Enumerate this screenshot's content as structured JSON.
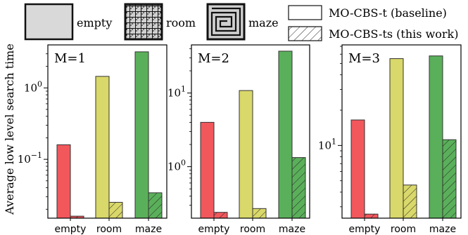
{
  "legend": {
    "map_items": [
      {
        "key": "empty",
        "label": "empty",
        "icon": "empty-map-thumbnail"
      },
      {
        "key": "room",
        "label": "room",
        "icon": "room-map-thumbnail"
      },
      {
        "key": "maze",
        "label": "maze",
        "icon": "maze-map-thumbnail"
      }
    ],
    "method_items": [
      {
        "key": "baseline",
        "label": "MO-CBS-t (baseline)",
        "hatch": false
      },
      {
        "key": "this_work",
        "label": "MO-CBS-ts (this work)",
        "hatch": true
      }
    ]
  },
  "colors": {
    "empty": "#f2575c",
    "room": "#d9d86a",
    "maze": "#5ab05a",
    "edge": "#333333"
  },
  "chart_data": [
    {
      "type": "bar",
      "annotation": "M=1",
      "ylabel": "Average low level search time",
      "yscale": "log",
      "ylim": [
        0.015,
        4.0
      ],
      "major_ticks": [
        {
          "value": 0.1,
          "base": "10",
          "exp": "−1"
        },
        {
          "value": 1,
          "base": "10",
          "exp": "0"
        }
      ],
      "categories": [
        "empty",
        "room",
        "maze"
      ],
      "series": [
        {
          "key": "baseline",
          "values": [
            0.16,
            1.45,
            3.2
          ]
        },
        {
          "key": "this_work",
          "values": [
            0.016,
            0.025,
            0.034
          ]
        }
      ]
    },
    {
      "type": "bar",
      "annotation": "M=2",
      "ylabel": "",
      "yscale": "log",
      "ylim": [
        0.2,
        45
      ],
      "major_ticks": [
        {
          "value": 1,
          "base": "10",
          "exp": "0"
        },
        {
          "value": 10,
          "base": "10",
          "exp": "1"
        }
      ],
      "categories": [
        "empty",
        "room",
        "maze"
      ],
      "series": [
        {
          "key": "baseline",
          "values": [
            4.0,
            10.8,
            37
          ]
        },
        {
          "key": "this_work",
          "values": [
            0.24,
            0.27,
            1.33
          ]
        }
      ]
    },
    {
      "type": "bar",
      "annotation": "M=3",
      "ylabel": "",
      "yscale": "log",
      "ylim": [
        2.4,
        72
      ],
      "major_ticks": [
        {
          "value": 10,
          "base": "10",
          "exp": "1"
        }
      ],
      "categories": [
        "empty",
        "room",
        "maze"
      ],
      "series": [
        {
          "key": "baseline",
          "values": [
            16.5,
            55,
            58
          ]
        },
        {
          "key": "this_work",
          "values": [
            2.6,
            4.6,
            11.2
          ]
        }
      ]
    }
  ]
}
